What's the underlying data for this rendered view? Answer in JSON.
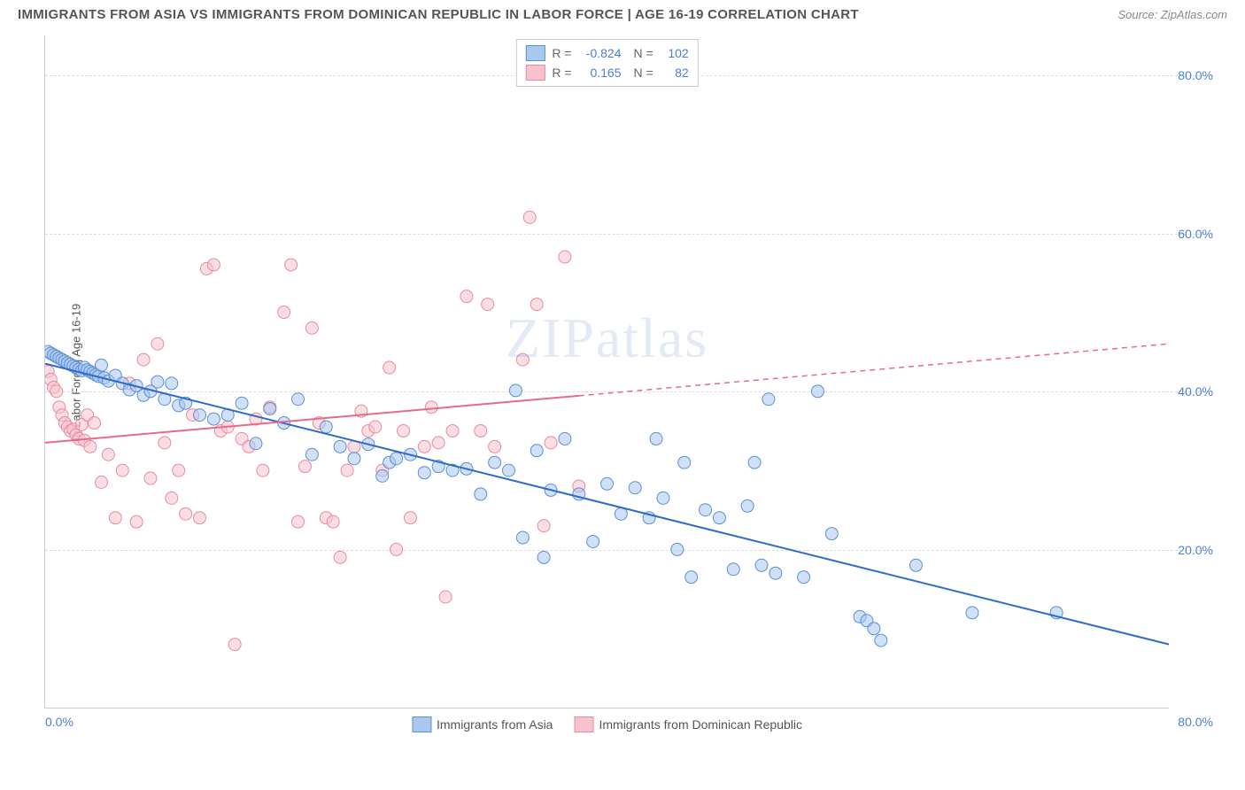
{
  "title": "IMMIGRANTS FROM ASIA VS IMMIGRANTS FROM DOMINICAN REPUBLIC IN LABOR FORCE | AGE 16-19 CORRELATION CHART",
  "source": "Source: ZipAtlas.com",
  "ylabel": "In Labor Force | Age 16-19",
  "watermark_a": "ZIP",
  "watermark_b": "atlas",
  "chart": {
    "type": "scatter-correlation",
    "xlim": [
      0,
      80
    ],
    "ylim": [
      0,
      85
    ],
    "y_ticks": [
      {
        "v": 20,
        "label": "20.0%"
      },
      {
        "v": 40,
        "label": "40.0%"
      },
      {
        "v": 60,
        "label": "60.0%"
      },
      {
        "v": 80,
        "label": "80.0%"
      }
    ],
    "x_left_label": "0.0%",
    "x_right_label": "80.0%",
    "background_color": "#ffffff",
    "grid_color": "#dddddd",
    "marker_radius": 7,
    "marker_opacity": 0.55,
    "line_width": 2
  },
  "series": [
    {
      "name": "Immigrants from Asia",
      "color_fill": "#a9c8f0",
      "color_stroke": "#5b8fd6",
      "line_color": "#2d6bc4",
      "r": "-0.824",
      "n": "102",
      "trend": {
        "x1": 0,
        "y1": 43.5,
        "x2": 80,
        "y2": 8,
        "dash_after_x": 80
      },
      "points": [
        [
          0.2,
          45
        ],
        [
          0.4,
          44.8
        ],
        [
          0.6,
          44.6
        ],
        [
          0.8,
          44.4
        ],
        [
          1.0,
          44.2
        ],
        [
          1.2,
          44.0
        ],
        [
          1.4,
          43.8
        ],
        [
          1.6,
          43.6
        ],
        [
          1.8,
          43.4
        ],
        [
          2.0,
          43.2
        ],
        [
          2.2,
          43.0
        ],
        [
          2.4,
          42.8
        ],
        [
          2.6,
          42.6
        ],
        [
          2.8,
          43.0
        ],
        [
          3.0,
          42.7
        ],
        [
          3.2,
          42.5
        ],
        [
          3.4,
          42.3
        ],
        [
          3.6,
          42.1
        ],
        [
          3.8,
          41.9
        ],
        [
          4.0,
          43.3
        ],
        [
          4.2,
          41.7
        ],
        [
          4.5,
          41.3
        ],
        [
          5.0,
          42.0
        ],
        [
          5.5,
          41.0
        ],
        [
          6,
          40.2
        ],
        [
          6.5,
          40.7
        ],
        [
          7,
          39.5
        ],
        [
          7.5,
          40.0
        ],
        [
          8,
          41.2
        ],
        [
          8.5,
          39.0
        ],
        [
          9,
          41.0
        ],
        [
          9.5,
          38.2
        ],
        [
          10,
          38.5
        ],
        [
          11,
          37.0
        ],
        [
          12,
          36.5
        ],
        [
          13,
          37.0
        ],
        [
          14,
          38.5
        ],
        [
          15,
          33.4
        ],
        [
          16,
          37.8
        ],
        [
          17,
          36.0
        ],
        [
          18,
          39.0
        ],
        [
          19,
          32.0
        ],
        [
          20,
          35.5
        ],
        [
          21,
          33.0
        ],
        [
          22,
          31.5
        ],
        [
          23,
          33.3
        ],
        [
          24,
          29.3
        ],
        [
          24.5,
          31.0
        ],
        [
          25,
          31.5
        ],
        [
          26,
          32.0
        ],
        [
          27,
          29.7
        ],
        [
          28,
          30.5
        ],
        [
          29,
          30.0
        ],
        [
          30,
          30.2
        ],
        [
          31,
          27.0
        ],
        [
          32,
          31.0
        ],
        [
          33,
          30.0
        ],
        [
          33.5,
          40.1
        ],
        [
          34,
          21.5
        ],
        [
          35,
          32.5
        ],
        [
          35.5,
          19.0
        ],
        [
          36,
          27.5
        ],
        [
          37,
          34.0
        ],
        [
          38,
          27.0
        ],
        [
          39,
          21.0
        ],
        [
          40,
          28.3
        ],
        [
          41,
          24.5
        ],
        [
          42,
          27.8
        ],
        [
          43,
          24.0
        ],
        [
          43.5,
          34.0
        ],
        [
          44,
          26.5
        ],
        [
          45,
          20.0
        ],
        [
          45.5,
          31.0
        ],
        [
          46,
          16.5
        ],
        [
          47,
          25.0
        ],
        [
          48,
          24.0
        ],
        [
          49,
          17.5
        ],
        [
          50,
          25.5
        ],
        [
          50.5,
          31.0
        ],
        [
          51,
          18.0
        ],
        [
          51.5,
          39.0
        ],
        [
          52,
          17.0
        ],
        [
          54,
          16.5
        ],
        [
          55,
          40.0
        ],
        [
          56,
          22.0
        ],
        [
          58,
          11.5
        ],
        [
          58.5,
          11.0
        ],
        [
          59,
          10.0
        ],
        [
          59.5,
          8.5
        ],
        [
          62,
          18.0
        ],
        [
          66,
          12.0
        ],
        [
          72,
          12.0
        ]
      ]
    },
    {
      "name": "Immigrants from Dominican Republic",
      "color_fill": "#f7c2cc",
      "color_stroke": "#e98ba0",
      "line_color": "#e76b88",
      "r": "0.165",
      "n": "82",
      "trend": {
        "x1": 0,
        "y1": 33.5,
        "x2": 80,
        "y2": 46.0,
        "dash_after_x": 38
      },
      "points": [
        [
          0.2,
          42.5
        ],
        [
          0.4,
          41.5
        ],
        [
          0.6,
          40.5
        ],
        [
          0.8,
          40.0
        ],
        [
          1.0,
          38.0
        ],
        [
          1.2,
          37.0
        ],
        [
          1.4,
          36.0
        ],
        [
          1.6,
          35.5
        ],
        [
          1.8,
          35.0
        ],
        [
          2.0,
          35.2
        ],
        [
          2.2,
          34.5
        ],
        [
          2.4,
          34.0
        ],
        [
          2.6,
          35.8
        ],
        [
          2.8,
          33.8
        ],
        [
          3.0,
          37.0
        ],
        [
          3.2,
          33.0
        ],
        [
          3.5,
          36.0
        ],
        [
          4,
          28.5
        ],
        [
          4.5,
          32.0
        ],
        [
          5,
          24.0
        ],
        [
          5.5,
          30.0
        ],
        [
          6,
          41.0
        ],
        [
          6.5,
          23.5
        ],
        [
          7,
          44.0
        ],
        [
          7.5,
          29.0
        ],
        [
          8,
          46.0
        ],
        [
          8.5,
          33.5
        ],
        [
          9,
          26.5
        ],
        [
          9.5,
          30.0
        ],
        [
          10,
          24.5
        ],
        [
          10.5,
          37.0
        ],
        [
          11,
          24.0
        ],
        [
          11.5,
          55.5
        ],
        [
          12,
          56.0
        ],
        [
          12.5,
          35.0
        ],
        [
          13,
          35.5
        ],
        [
          13.5,
          8.0
        ],
        [
          14,
          34.0
        ],
        [
          14.5,
          33.0
        ],
        [
          15,
          36.5
        ],
        [
          15.5,
          30.0
        ],
        [
          16,
          38.0
        ],
        [
          17,
          50.0
        ],
        [
          17.5,
          56.0
        ],
        [
          18,
          23.5
        ],
        [
          18.5,
          30.5
        ],
        [
          19,
          48.0
        ],
        [
          19.5,
          36.0
        ],
        [
          20,
          24.0
        ],
        [
          20.5,
          23.5
        ],
        [
          21,
          19.0
        ],
        [
          21.5,
          30.0
        ],
        [
          22,
          33.0
        ],
        [
          22.5,
          37.5
        ],
        [
          23,
          35.0
        ],
        [
          23.5,
          35.5
        ],
        [
          24,
          30.0
        ],
        [
          24.5,
          43.0
        ],
        [
          25,
          20.0
        ],
        [
          25.5,
          35.0
        ],
        [
          26,
          24.0
        ],
        [
          27,
          33.0
        ],
        [
          27.5,
          38.0
        ],
        [
          28,
          33.5
        ],
        [
          28.5,
          14.0
        ],
        [
          29,
          35.0
        ],
        [
          30,
          52.0
        ],
        [
          31,
          35.0
        ],
        [
          31.5,
          51.0
        ],
        [
          32,
          33.0
        ],
        [
          34,
          44.0
        ],
        [
          34.5,
          62.0
        ],
        [
          35,
          51.0
        ],
        [
          35.5,
          23.0
        ],
        [
          36,
          33.5
        ],
        [
          37,
          57.0
        ],
        [
          38,
          28.0
        ]
      ]
    }
  ],
  "bottom_legend": [
    {
      "label": "Immigrants from Asia",
      "fill": "#a9c8f0",
      "stroke": "#5b8fd6"
    },
    {
      "label": "Immigrants from Dominican Republic",
      "fill": "#f7c2cc",
      "stroke": "#e98ba0"
    }
  ]
}
